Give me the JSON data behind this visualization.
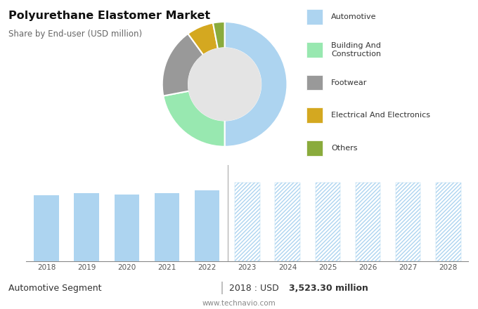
{
  "title": "Polyurethane Elastomer Market",
  "subtitle": "Share by End-user (USD million)",
  "donut_labels": [
    "Automotive",
    "Building And\nConstruction",
    "Footwear",
    "Electrical And Electronics",
    "Others"
  ],
  "donut_values": [
    50,
    22,
    18,
    7,
    3
  ],
  "donut_colors": [
    "#add4f0",
    "#98e8b0",
    "#999999",
    "#d4a820",
    "#8aab3c"
  ],
  "bar_years_hist": [
    2018,
    2019,
    2020,
    2021,
    2022
  ],
  "bar_values_hist": [
    3523,
    3650,
    3570,
    3640,
    3800
  ],
  "bar_years_fore": [
    2023,
    2024,
    2025,
    2026,
    2027,
    2028
  ],
  "bar_values_fore": [
    4200,
    4200,
    4200,
    4200,
    4200,
    4200
  ],
  "bar_color_hist": "#add4f0",
  "bar_color_fore": "#add4f0",
  "bottom_label_left": "Automotive Segment",
  "bottom_label_right_plain": "2018 : USD  ",
  "bottom_label_right_bold": "3,523.30 million",
  "bottom_url": "www.technavio.com",
  "bg_top": "#e4e4e4",
  "bg_bottom": "#ffffff",
  "grid_color": "#d0d0d0",
  "separator_color": "#aaaaaa"
}
